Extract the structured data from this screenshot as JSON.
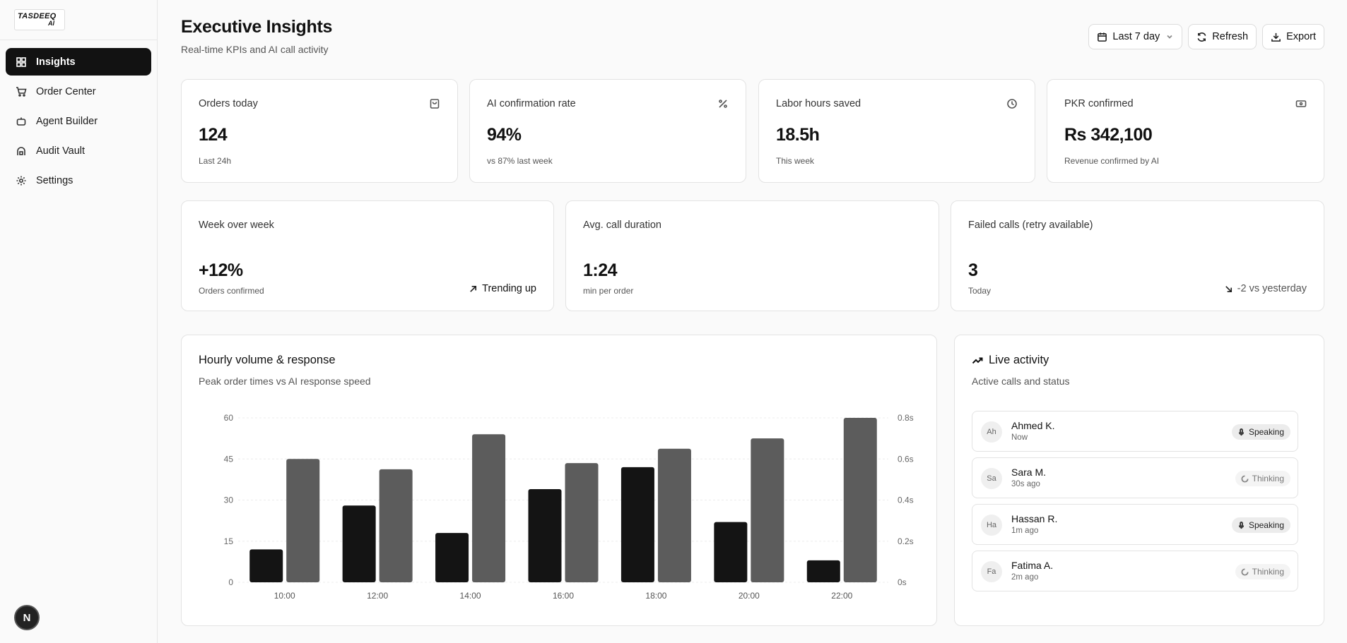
{
  "logo": {
    "line1": "TASDEEQ",
    "line2": "AI"
  },
  "nav": [
    {
      "label": "Insights",
      "icon": "grid-icon",
      "active": true
    },
    {
      "label": "Order Center",
      "icon": "cart-icon"
    },
    {
      "label": "Agent Builder",
      "icon": "bot-icon"
    },
    {
      "label": "Audit Vault",
      "icon": "vault-icon"
    },
    {
      "label": "Settings",
      "icon": "gear-icon"
    }
  ],
  "user_badge": "N",
  "header": {
    "title": "Executive Insights",
    "subtitle": "Real-time KPIs and AI call activity",
    "date_range": "Last 7 day",
    "refresh_label": "Refresh",
    "export_label": "Export"
  },
  "kpis": [
    {
      "label": "Orders today",
      "value": "124",
      "caption": "Last 24h",
      "icon": "bag-icon"
    },
    {
      "label": "AI confirmation rate",
      "value": "94%",
      "caption": "vs 87% last week",
      "icon": "percent-icon"
    },
    {
      "label": "Labor hours saved",
      "value": "18.5h",
      "caption": "This week",
      "icon": "clock-icon"
    },
    {
      "label": "PKR confirmed",
      "value": "Rs 342,100",
      "caption": "Revenue confirmed by AI",
      "icon": "banknote-icon"
    }
  ],
  "weekly": [
    {
      "label": "Week over week",
      "value": "+12%",
      "caption": "Orders confirmed",
      "trend": "Trending up"
    },
    {
      "label": "Avg. call duration",
      "value": "1:24",
      "caption": "min per order",
      "trend": ""
    },
    {
      "label": "Failed calls (retry available)",
      "value": "3",
      "caption": "Today",
      "trend": "-2 vs yesterday"
    }
  ],
  "chart_card": {
    "title": "Hourly volume & response",
    "subtitle": "Peak order times vs AI response speed"
  },
  "chart_data": {
    "type": "bar",
    "categories": [
      "10:00",
      "12:00",
      "14:00",
      "16:00",
      "18:00",
      "20:00",
      "22:00"
    ],
    "series": [
      {
        "axis": "left",
        "color": "#141414",
        "values": [
          12,
          28,
          18,
          34,
          42,
          22,
          8
        ]
      },
      {
        "axis": "right",
        "color": "#5c5c5c",
        "values": [
          0.6,
          0.55,
          0.72,
          0.58,
          0.65,
          0.7,
          0.8
        ]
      }
    ],
    "ylim_left": [
      0,
      60
    ],
    "ylim_right": [
      0,
      0.8
    ],
    "yticks_left": [
      "0",
      "15",
      "30",
      "45",
      "60"
    ],
    "yticks_right": [
      "0s",
      "0.2s",
      "0.4s",
      "0.6s",
      "0.8s"
    ],
    "grid": true
  },
  "live": {
    "title": "Live activity",
    "subtitle": "Active calls and status",
    "items": [
      {
        "initials": "Ah",
        "name": "Ahmed K.",
        "time": "Now",
        "status": "Speaking"
      },
      {
        "initials": "Sa",
        "name": "Sara M.",
        "time": "30s ago",
        "status": "Thinking"
      },
      {
        "initials": "Ha",
        "name": "Hassan R.",
        "time": "1m ago",
        "status": "Speaking"
      },
      {
        "initials": "Fa",
        "name": "Fatima A.",
        "time": "2m ago",
        "status": "Thinking"
      }
    ]
  }
}
